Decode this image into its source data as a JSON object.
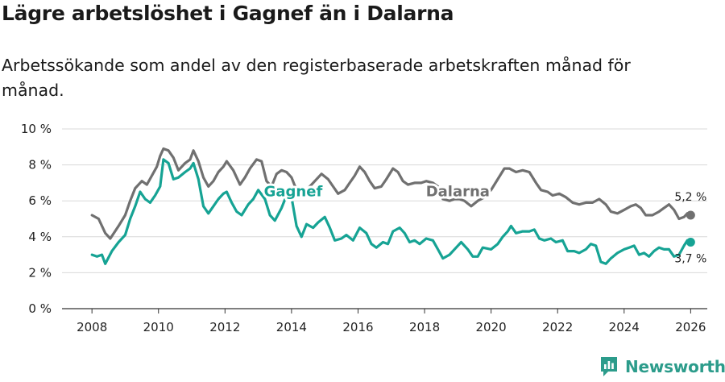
{
  "title": "Lägre arbetslöshet i Gagnef än i Dalarna",
  "subtitle": "Arbetssökande som andel av den registerbaserade arbetskraften månad för månad.",
  "brand": {
    "name": "Newsworthy",
    "icon": "newsworthy-logo-icon",
    "color": "#2c9c8b"
  },
  "chart_data": {
    "type": "line",
    "ylim": [
      0,
      10
    ],
    "xlim": [
      2007.1,
      2026.5
    ],
    "yticks": [
      {
        "v": 0,
        "label": "0 %"
      },
      {
        "v": 2,
        "label": "2 %"
      },
      {
        "v": 4,
        "label": "4 %"
      },
      {
        "v": 6,
        "label": "6 %"
      },
      {
        "v": 8,
        "label": "8 %"
      },
      {
        "v": 10,
        "label": "10 %"
      }
    ],
    "xticks": [
      {
        "v": 2008,
        "label": "2008"
      },
      {
        "v": 2010,
        "label": "2010"
      },
      {
        "v": 2012,
        "label": "2012"
      },
      {
        "v": 2014,
        "label": "2014"
      },
      {
        "v": 2016,
        "label": "2016"
      },
      {
        "v": 2018,
        "label": "2018"
      },
      {
        "v": 2020,
        "label": "2020"
      },
      {
        "v": 2022,
        "label": "2022"
      },
      {
        "v": 2024,
        "label": "2024"
      },
      {
        "v": 2026,
        "label": "2026"
      }
    ],
    "grid": true,
    "series": [
      {
        "name": "Dalarna",
        "label": "Dalarna",
        "end_label": "5,2 %",
        "color": "#707070",
        "points": [
          [
            2008.0,
            5.2
          ],
          [
            2008.2,
            5.0
          ],
          [
            2008.4,
            4.2
          ],
          [
            2008.55,
            3.9
          ],
          [
            2008.8,
            4.6
          ],
          [
            2009.0,
            5.2
          ],
          [
            2009.15,
            6.0
          ],
          [
            2009.3,
            6.7
          ],
          [
            2009.5,
            7.1
          ],
          [
            2009.65,
            6.9
          ],
          [
            2009.8,
            7.4
          ],
          [
            2009.95,
            7.9
          ],
          [
            2010.05,
            8.5
          ],
          [
            2010.15,
            8.9
          ],
          [
            2010.3,
            8.8
          ],
          [
            2010.45,
            8.4
          ],
          [
            2010.6,
            7.7
          ],
          [
            2010.8,
            8.1
          ],
          [
            2010.95,
            8.3
          ],
          [
            2011.05,
            8.8
          ],
          [
            2011.2,
            8.2
          ],
          [
            2011.35,
            7.3
          ],
          [
            2011.5,
            6.8
          ],
          [
            2011.65,
            7.1
          ],
          [
            2011.8,
            7.6
          ],
          [
            2011.95,
            7.9
          ],
          [
            2012.05,
            8.2
          ],
          [
            2012.25,
            7.7
          ],
          [
            2012.45,
            6.9
          ],
          [
            2012.6,
            7.3
          ],
          [
            2012.75,
            7.8
          ],
          [
            2012.95,
            8.3
          ],
          [
            2013.1,
            8.2
          ],
          [
            2013.25,
            7.1
          ],
          [
            2013.4,
            6.8
          ],
          [
            2013.55,
            7.5
          ],
          [
            2013.7,
            7.7
          ],
          [
            2013.85,
            7.6
          ],
          [
            2014.0,
            7.3
          ],
          [
            2014.15,
            6.6
          ],
          [
            2014.25,
            6.2
          ],
          [
            2014.4,
            6.5
          ],
          [
            2014.55,
            6.8
          ],
          [
            2014.75,
            7.2
          ],
          [
            2014.9,
            7.5
          ],
          [
            2015.1,
            7.2
          ],
          [
            2015.25,
            6.8
          ],
          [
            2015.4,
            6.4
          ],
          [
            2015.6,
            6.6
          ],
          [
            2015.75,
            7.0
          ],
          [
            2015.9,
            7.4
          ],
          [
            2016.05,
            7.9
          ],
          [
            2016.2,
            7.6
          ],
          [
            2016.35,
            7.1
          ],
          [
            2016.5,
            6.7
          ],
          [
            2016.7,
            6.8
          ],
          [
            2016.85,
            7.2
          ],
          [
            2017.05,
            7.8
          ],
          [
            2017.2,
            7.6
          ],
          [
            2017.35,
            7.1
          ],
          [
            2017.5,
            6.9
          ],
          [
            2017.7,
            7.0
          ],
          [
            2017.9,
            7.0
          ],
          [
            2018.05,
            7.1
          ],
          [
            2018.25,
            7.0
          ],
          [
            2018.4,
            6.8
          ],
          [
            2018.55,
            6.1
          ],
          [
            2018.75,
            6.0
          ],
          [
            2018.9,
            6.1
          ],
          [
            2019.05,
            6.1
          ],
          [
            2019.2,
            6.0
          ],
          [
            2019.4,
            5.7
          ],
          [
            2019.6,
            6.0
          ],
          [
            2019.8,
            6.2
          ],
          [
            2020.0,
            6.6
          ],
          [
            2020.2,
            7.2
          ],
          [
            2020.4,
            7.8
          ],
          [
            2020.55,
            7.8
          ],
          [
            2020.75,
            7.6
          ],
          [
            2020.95,
            7.7
          ],
          [
            2021.15,
            7.6
          ],
          [
            2021.35,
            7.0
          ],
          [
            2021.5,
            6.6
          ],
          [
            2021.7,
            6.5
          ],
          [
            2021.85,
            6.3
          ],
          [
            2022.05,
            6.4
          ],
          [
            2022.25,
            6.2
          ],
          [
            2022.45,
            5.9
          ],
          [
            2022.65,
            5.8
          ],
          [
            2022.85,
            5.9
          ],
          [
            2023.05,
            5.9
          ],
          [
            2023.25,
            6.1
          ],
          [
            2023.45,
            5.8
          ],
          [
            2023.6,
            5.4
          ],
          [
            2023.8,
            5.3
          ],
          [
            2024.0,
            5.5
          ],
          [
            2024.2,
            5.7
          ],
          [
            2024.35,
            5.8
          ],
          [
            2024.5,
            5.6
          ],
          [
            2024.65,
            5.2
          ],
          [
            2024.85,
            5.2
          ],
          [
            2025.05,
            5.4
          ],
          [
            2025.2,
            5.6
          ],
          [
            2025.35,
            5.8
          ],
          [
            2025.5,
            5.5
          ],
          [
            2025.65,
            5.0
          ],
          [
            2025.8,
            5.1
          ],
          [
            2025.9,
            5.3
          ],
          [
            2026.0,
            5.2
          ]
        ]
      },
      {
        "name": "Gagnef",
        "label": "Gagnef",
        "end_label": "3,7 %",
        "color": "#16a394",
        "points": [
          [
            2008.0,
            3.0
          ],
          [
            2008.15,
            2.9
          ],
          [
            2008.3,
            3.0
          ],
          [
            2008.4,
            2.5
          ],
          [
            2008.6,
            3.2
          ],
          [
            2008.8,
            3.7
          ],
          [
            2009.0,
            4.1
          ],
          [
            2009.15,
            5.0
          ],
          [
            2009.3,
            5.7
          ],
          [
            2009.45,
            6.5
          ],
          [
            2009.6,
            6.1
          ],
          [
            2009.75,
            5.9
          ],
          [
            2009.9,
            6.3
          ],
          [
            2010.05,
            6.8
          ],
          [
            2010.15,
            8.3
          ],
          [
            2010.3,
            8.1
          ],
          [
            2010.45,
            7.2
          ],
          [
            2010.6,
            7.3
          ],
          [
            2010.8,
            7.6
          ],
          [
            2010.95,
            7.8
          ],
          [
            2011.05,
            8.1
          ],
          [
            2011.2,
            7.2
          ],
          [
            2011.35,
            5.7
          ],
          [
            2011.5,
            5.3
          ],
          [
            2011.65,
            5.7
          ],
          [
            2011.8,
            6.1
          ],
          [
            2011.95,
            6.4
          ],
          [
            2012.05,
            6.5
          ],
          [
            2012.2,
            5.9
          ],
          [
            2012.35,
            5.4
          ],
          [
            2012.5,
            5.2
          ],
          [
            2012.7,
            5.8
          ],
          [
            2012.85,
            6.1
          ],
          [
            2013.0,
            6.6
          ],
          [
            2013.2,
            6.1
          ],
          [
            2013.35,
            5.2
          ],
          [
            2013.5,
            4.9
          ],
          [
            2013.7,
            5.6
          ],
          [
            2013.85,
            6.3
          ],
          [
            2014.0,
            6.2
          ],
          [
            2014.15,
            4.6
          ],
          [
            2014.3,
            4.0
          ],
          [
            2014.45,
            4.7
          ],
          [
            2014.65,
            4.5
          ],
          [
            2014.8,
            4.8
          ],
          [
            2015.0,
            5.1
          ],
          [
            2015.15,
            4.5
          ],
          [
            2015.3,
            3.8
          ],
          [
            2015.5,
            3.9
          ],
          [
            2015.65,
            4.1
          ],
          [
            2015.85,
            3.8
          ],
          [
            2016.05,
            4.5
          ],
          [
            2016.25,
            4.2
          ],
          [
            2016.4,
            3.6
          ],
          [
            2016.55,
            3.4
          ],
          [
            2016.75,
            3.7
          ],
          [
            2016.9,
            3.6
          ],
          [
            2017.05,
            4.3
          ],
          [
            2017.25,
            4.5
          ],
          [
            2017.4,
            4.2
          ],
          [
            2017.55,
            3.7
          ],
          [
            2017.7,
            3.8
          ],
          [
            2017.85,
            3.6
          ],
          [
            2018.05,
            3.9
          ],
          [
            2018.25,
            3.8
          ],
          [
            2018.4,
            3.3
          ],
          [
            2018.55,
            2.8
          ],
          [
            2018.75,
            3.0
          ],
          [
            2018.95,
            3.4
          ],
          [
            2019.1,
            3.7
          ],
          [
            2019.3,
            3.3
          ],
          [
            2019.45,
            2.9
          ],
          [
            2019.6,
            2.9
          ],
          [
            2019.75,
            3.4
          ],
          [
            2020.0,
            3.3
          ],
          [
            2020.2,
            3.6
          ],
          [
            2020.35,
            4.0
          ],
          [
            2020.5,
            4.3
          ],
          [
            2020.6,
            4.6
          ],
          [
            2020.75,
            4.2
          ],
          [
            2020.95,
            4.3
          ],
          [
            2021.15,
            4.3
          ],
          [
            2021.3,
            4.4
          ],
          [
            2021.45,
            3.9
          ],
          [
            2021.6,
            3.8
          ],
          [
            2021.8,
            3.9
          ],
          [
            2021.95,
            3.7
          ],
          [
            2022.15,
            3.8
          ],
          [
            2022.3,
            3.2
          ],
          [
            2022.5,
            3.2
          ],
          [
            2022.65,
            3.1
          ],
          [
            2022.85,
            3.3
          ],
          [
            2023.0,
            3.6
          ],
          [
            2023.15,
            3.5
          ],
          [
            2023.3,
            2.6
          ],
          [
            2023.45,
            2.5
          ],
          [
            2023.6,
            2.8
          ],
          [
            2023.8,
            3.1
          ],
          [
            2024.0,
            3.3
          ],
          [
            2024.15,
            3.4
          ],
          [
            2024.3,
            3.5
          ],
          [
            2024.45,
            3.0
          ],
          [
            2024.6,
            3.1
          ],
          [
            2024.75,
            2.9
          ],
          [
            2024.9,
            3.2
          ],
          [
            2025.05,
            3.4
          ],
          [
            2025.2,
            3.3
          ],
          [
            2025.35,
            3.3
          ],
          [
            2025.5,
            2.9
          ],
          [
            2025.65,
            3.0
          ],
          [
            2025.8,
            3.5
          ],
          [
            2025.9,
            3.8
          ],
          [
            2026.0,
            3.7
          ]
        ]
      }
    ]
  }
}
